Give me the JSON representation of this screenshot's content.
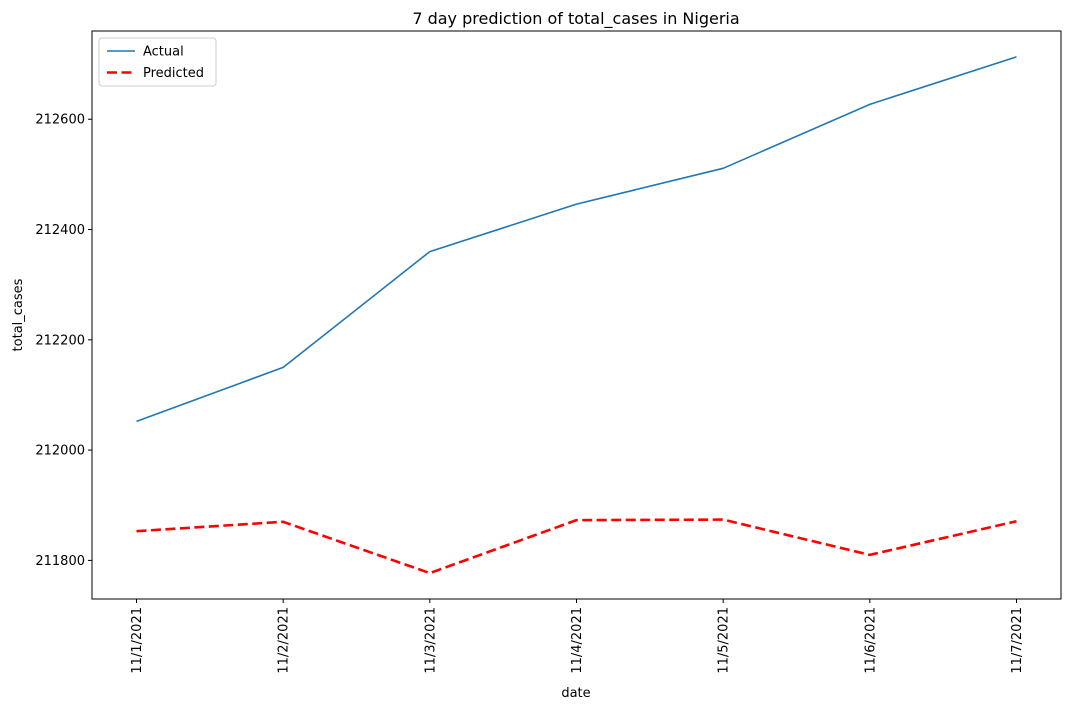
{
  "chart_data": {
    "type": "line",
    "title": "7 day prediction of total_cases in Nigeria",
    "xlabel": "date",
    "ylabel": "total_cases",
    "categories": [
      "11/1/2021",
      "11/2/2021",
      "11/3/2021",
      "11/4/2021",
      "11/5/2021",
      "11/6/2021",
      "11/7/2021"
    ],
    "y_ticks": [
      211800,
      212000,
      212200,
      212400,
      212600
    ],
    "ylim": [
      211730,
      212760
    ],
    "grid": false,
    "legend_position": "top-left",
    "series": [
      {
        "name": "Actual",
        "color": "#1f77b4",
        "style": "solid",
        "values": [
          212052,
          212150,
          212360,
          212446,
          212511,
          212627,
          212713
        ]
      },
      {
        "name": "Predicted",
        "color": "#ff0000",
        "style": "dashed",
        "values": [
          211853,
          211870,
          211777,
          211873,
          211874,
          211810,
          211871
        ]
      }
    ]
  }
}
